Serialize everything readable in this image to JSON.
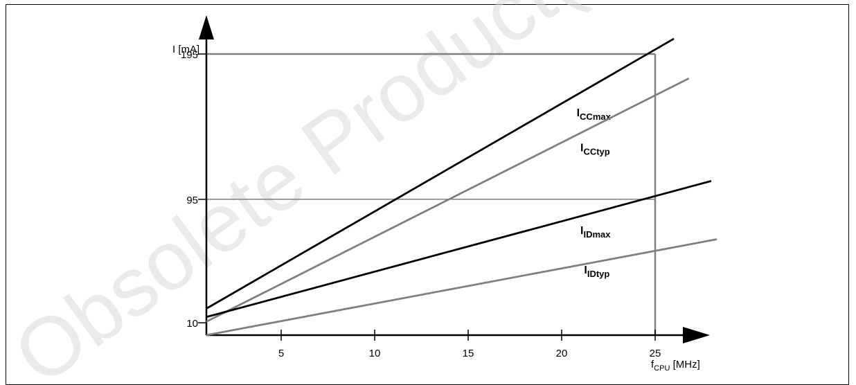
{
  "chart_data": {
    "type": "line",
    "watermark": "Obsolete Product(s) - Obsolete Product(s)",
    "ylabel": "I [mA]",
    "xlabel_main": "f",
    "xlabel_sub": "CPU",
    "xlabel_unit": " [MHz]",
    "xlim": [
      1,
      28
    ],
    "ylim": [
      1.5,
      205
    ],
    "x_ticks": [
      5,
      10,
      15,
      20,
      25
    ],
    "y_ticks": [
      10,
      95,
      195
    ],
    "x_tick_labels": [
      "5",
      "10",
      "15",
      "20",
      "25"
    ],
    "y_tick_labels": [
      "10",
      "95",
      "195"
    ],
    "reference_lines": {
      "horizontal": [
        95,
        195
      ],
      "vertical": [
        25
      ]
    },
    "series": [
      {
        "name_main": "I",
        "name_sub": "CCmax",
        "color": "#000000",
        "x": [
          1,
          26
        ],
        "y": [
          19.8,
          205.5
        ],
        "label_x": 20.8,
        "label_y": 152
      },
      {
        "name_main": "I",
        "name_sub": "CCtyp",
        "color": "#808080",
        "x": [
          1,
          26.8
        ],
        "y": [
          10.8,
          178.2
        ],
        "label_x": 21,
        "label_y": 128
      },
      {
        "name_main": "I",
        "name_sub": "IDmax",
        "color": "#000000",
        "x": [
          1,
          28
        ],
        "y": [
          14,
          107.6
        ],
        "label_x": 21,
        "label_y": 71
      },
      {
        "name_main": "I",
        "name_sub": "IDtyp",
        "color": "#808080",
        "x": [
          1,
          28.3
        ],
        "y": [
          1.5,
          67.5
        ],
        "label_x": 21.2,
        "label_y": 44
      }
    ]
  }
}
